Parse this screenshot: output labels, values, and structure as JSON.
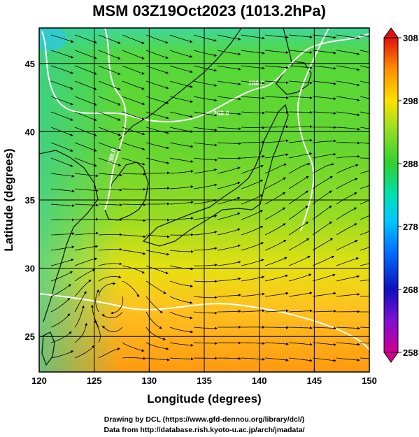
{
  "chart_data": {
    "type": "heatmap",
    "title": "MSM 03Z19Oct2023 (1013.2hPa)",
    "xlabel": "Longitude (degrees)",
    "ylabel": "Latitude  (degrees)",
    "xlim": [
      120,
      150
    ],
    "ylim": [
      22.4,
      47.6
    ],
    "x_ticks": [
      120,
      125,
      130,
      135,
      140,
      145,
      150
    ],
    "x_tick_labels": [
      "120",
      "125",
      "130",
      "135",
      "140",
      "145",
      "150"
    ],
    "y_ticks": [
      25,
      30,
      35,
      40,
      45
    ],
    "y_tick_labels": [
      "25",
      "30",
      "35",
      "40",
      "45"
    ],
    "grid": true,
    "grid_lines_lon": [
      125,
      130,
      135,
      140,
      145
    ],
    "grid_lines_lat": [
      25,
      30,
      35,
      40,
      45
    ],
    "overlay": "streamlines",
    "contour_labels": [
      "288.0",
      "288.0",
      "288.0"
    ],
    "colorbar": {
      "min": 258,
      "max": 308,
      "ticks": [
        308,
        298,
        288,
        278,
        268,
        258
      ],
      "tick_labels": [
        "308",
        "298",
        "288",
        "278",
        "268",
        "258"
      ],
      "colors": [
        "#e00080",
        "#b000d0",
        "#2020d0",
        "#0060ff",
        "#00b0ff",
        "#00e0d0",
        "#30e060",
        "#40d040",
        "#b0e020",
        "#ffe000",
        "#ffa000",
        "#ff6000",
        "#e02020"
      ],
      "placement": "right"
    },
    "field_samples": [
      {
        "lon": 121,
        "lat": 46,
        "value": 283
      },
      {
        "lon": 130,
        "lat": 44,
        "value": 289
      },
      {
        "lon": 140,
        "lat": 44,
        "value": 288
      },
      {
        "lon": 148,
        "lat": 44,
        "value": 290
      },
      {
        "lon": 135,
        "lat": 38,
        "value": 290
      },
      {
        "lon": 128,
        "lat": 35,
        "value": 291
      },
      {
        "lon": 145,
        "lat": 33,
        "value": 293
      },
      {
        "lon": 125,
        "lat": 28,
        "value": 297
      },
      {
        "lon": 135,
        "lat": 27,
        "value": 298
      },
      {
        "lon": 145,
        "lat": 25,
        "value": 299
      },
      {
        "lon": 128,
        "lat": 23,
        "value": 300
      }
    ]
  },
  "credits": {
    "line1": "Drawing by DCL (https://www.gfd-dennou.org/library/dcl/)",
    "line2": "Data from http://database.rish.kyoto-u.ac.jp/arch/jmadata/"
  }
}
